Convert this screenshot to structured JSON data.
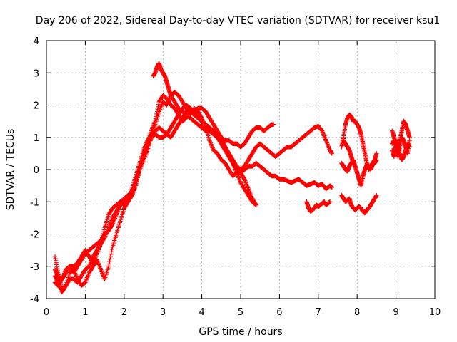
{
  "chart_data": {
    "type": "scatter",
    "title": "Day 206 of 2022, Sidereal Day-to-day VTEC variation (SDTVAR) for receiver ksu1",
    "xlabel": "GPS time / hours",
    "ylabel": "SDTVAR / TECUs",
    "xlim": [
      0,
      10
    ],
    "ylim": [
      -4,
      4
    ],
    "xticks": [
      0,
      1,
      2,
      3,
      4,
      5,
      6,
      7,
      8,
      9,
      10
    ],
    "yticks": [
      -4,
      -3,
      -2,
      -1,
      0,
      1,
      2,
      3,
      4
    ],
    "grid": true,
    "marker": "+",
    "marker_color": "#ff0000",
    "series": [
      {
        "x": [
          0.22,
          0.3,
          0.4,
          0.5,
          0.6,
          0.7,
          0.8,
          0.9,
          1.0,
          1.1,
          1.2,
          1.3,
          1.4,
          1.5,
          1.6,
          1.7,
          1.8,
          1.9,
          2.0,
          2.1,
          2.2,
          2.3,
          2.4,
          2.5,
          2.6,
          2.7,
          2.8,
          2.9,
          3.0,
          3.1,
          3.2,
          3.3,
          3.4,
          3.5,
          3.6,
          3.7,
          3.8,
          3.9,
          4.0,
          4.1,
          4.2,
          4.3,
          4.4,
          4.5,
          4.6,
          4.7,
          4.8,
          4.9,
          5.0,
          5.1,
          5.2,
          5.3,
          5.4
        ],
        "y": [
          -2.7,
          -3.2,
          -3.7,
          -3.6,
          -3.4,
          -3.4,
          -3.5,
          -3.3,
          -3.1,
          -3.0,
          -2.7,
          -2.5,
          -2.3,
          -2.1,
          -1.8,
          -1.5,
          -1.3,
          -1.1,
          -1.0,
          -0.9,
          -0.6,
          -0.2,
          0.2,
          0.6,
          0.9,
          1.1,
          1.2,
          1.3,
          1.2,
          1.1,
          1.0,
          1.2,
          1.4,
          1.6,
          1.8,
          1.9,
          1.8,
          1.6,
          1.5,
          1.3,
          0.9,
          0.6,
          0.5,
          0.3,
          0.2,
          0.0,
          -0.2,
          -0.1,
          -0.1,
          -0.3,
          -0.6,
          -0.9,
          -1.1
        ]
      },
      {
        "x": [
          0.22,
          0.3,
          0.4,
          0.5,
          0.6,
          0.7,
          0.8,
          0.9,
          1.0,
          1.1,
          1.2,
          1.3,
          1.4,
          1.5,
          1.6,
          1.7,
          1.8,
          1.9,
          2.0,
          2.1,
          2.2,
          2.3,
          2.4,
          2.5,
          2.6,
          2.7,
          2.8,
          2.9,
          3.0,
          3.1,
          3.2,
          3.3,
          3.4,
          3.5,
          3.6,
          3.7,
          3.8,
          3.9,
          4.0,
          4.1,
          4.2,
          4.3,
          4.4,
          4.5,
          4.6,
          4.7,
          4.8,
          4.9,
          5.0,
          5.1,
          5.2,
          5.3,
          5.4,
          5.5,
          5.6,
          5.7,
          5.8,
          5.85
        ],
        "y": [
          -3.5,
          -3.6,
          -3.4,
          -3.1,
          -3.0,
          -3.2,
          -3.0,
          -2.8,
          -2.6,
          -2.5,
          -2.4,
          -2.3,
          -2.2,
          -2.0,
          -1.9,
          -1.7,
          -1.4,
          -1.1,
          -0.9,
          -0.8,
          -0.7,
          -0.3,
          0.1,
          0.5,
          0.8,
          1.2,
          1.5,
          2.1,
          2.3,
          2.2,
          2.0,
          1.9,
          1.7,
          1.5,
          1.6,
          1.8,
          1.7,
          1.6,
          1.5,
          1.4,
          1.3,
          1.2,
          1.1,
          1.0,
          0.9,
          0.9,
          0.8,
          0.8,
          0.7,
          0.8,
          1.0,
          1.2,
          1.3,
          1.3,
          1.2,
          1.3,
          1.4,
          1.4
        ]
      },
      {
        "x": [
          0.22,
          0.3,
          0.4,
          0.5,
          0.6,
          0.7,
          0.8,
          0.9,
          1.0,
          1.1,
          1.2,
          1.3,
          1.4,
          1.5,
          1.6,
          1.7,
          1.8,
          1.9,
          2.0,
          2.1,
          2.2,
          2.3,
          2.4,
          2.5,
          2.6,
          2.7,
          2.8,
          2.9,
          3.0,
          3.1,
          3.2,
          3.3,
          3.4,
          3.5,
          3.6,
          3.7,
          3.8,
          3.9,
          4.0,
          4.1,
          4.2,
          4.3,
          4.4,
          4.5,
          4.6,
          4.7,
          4.8,
          4.9,
          5.0,
          5.1,
          5.2,
          5.3,
          5.4,
          5.5,
          5.6,
          5.7,
          5.8,
          5.9,
          6.0,
          6.1,
          6.2,
          6.3,
          6.4,
          6.5,
          6.6,
          6.7,
          6.8,
          6.9,
          7.0,
          7.1,
          7.2,
          7.3,
          7.35
        ],
        "y": [
          -3.3,
          -3.5,
          -3.8,
          -3.6,
          -3.2,
          -3.1,
          -3.4,
          -3.6,
          -3.5,
          -3.2,
          -3.0,
          -2.8,
          -3.1,
          -3.4,
          -3.0,
          -2.4,
          -2.0,
          -1.6,
          -1.2,
          -1.0,
          -0.8,
          -0.5,
          0.0,
          0.3,
          0.6,
          1.0,
          1.4,
          1.8,
          2.1,
          2.0,
          2.3,
          2.4,
          2.3,
          2.1,
          1.9,
          1.7,
          1.9,
          1.8,
          1.6,
          1.3,
          1.2,
          1.1,
          1.0,
          0.9,
          0.7,
          0.5,
          0.3,
          0.1,
          0.0,
          0.1,
          0.3,
          0.5,
          0.7,
          0.8,
          0.7,
          0.6,
          0.5,
          0.4,
          0.5,
          0.6,
          0.7,
          0.7,
          0.8,
          0.9,
          1.0,
          1.1,
          1.2,
          1.3,
          1.35,
          1.2,
          0.9,
          0.6,
          0.5
        ]
      },
      {
        "x": [
          0.22,
          0.3,
          0.4,
          0.5,
          0.6,
          0.7,
          0.8,
          0.9,
          1.0,
          1.1,
          1.2,
          1.3,
          1.4,
          1.5,
          1.6,
          1.7,
          1.8,
          1.9,
          2.0,
          2.1,
          2.2,
          2.3,
          2.4,
          2.5,
          2.6,
          2.7,
          2.8,
          2.9,
          3.0,
          3.1,
          3.2,
          3.3,
          3.4,
          3.5,
          3.6,
          3.7,
          3.8,
          3.9,
          4.0,
          4.1,
          4.2,
          4.3,
          4.4,
          4.5,
          4.6,
          4.7,
          4.8,
          4.9,
          5.0,
          5.1,
          5.2,
          5.3,
          5.4,
          5.5,
          5.6,
          5.7,
          5.8,
          5.9,
          6.0,
          6.1,
          6.2,
          6.3,
          6.4,
          6.5,
          6.6,
          6.7,
          6.8,
          6.9,
          7.0,
          7.1,
          7.2,
          7.3,
          7.35
        ],
        "y": [
          -3.1,
          -3.3,
          -3.4,
          -3.2,
          -3.0,
          -3.0,
          -2.9,
          -2.7,
          -2.5,
          -2.7,
          -2.9,
          -2.6,
          -2.3,
          -1.8,
          -1.4,
          -1.2,
          -1.1,
          -1.0,
          -1.1,
          -1.0,
          -0.8,
          -0.4,
          0.0,
          0.4,
          0.7,
          1.0,
          1.1,
          1.0,
          1.0,
          1.1,
          1.3,
          1.5,
          1.7,
          1.9,
          2.0,
          1.9,
          1.8,
          1.9,
          1.9,
          1.8,
          1.6,
          1.4,
          1.2,
          1.0,
          0.7,
          0.4,
          0.2,
          0.0,
          -0.1,
          0.0,
          0.1,
          0.1,
          0.2,
          0.1,
          0.0,
          -0.1,
          -0.2,
          -0.2,
          -0.3,
          -0.3,
          -0.35,
          -0.4,
          -0.35,
          -0.3,
          -0.4,
          -0.5,
          -0.45,
          -0.4,
          -0.5,
          -0.45,
          -0.6,
          -0.5,
          -0.55
        ]
      },
      {
        "x": [
          2.75,
          2.8,
          2.85,
          2.9,
          2.95,
          3.0,
          3.05,
          3.1,
          3.15,
          3.2,
          3.3,
          3.4,
          3.5,
          3.6,
          3.7,
          3.8,
          3.9,
          4.0,
          4.1,
          4.2,
          4.3,
          4.4,
          4.5,
          4.6,
          4.7,
          4.8,
          4.9,
          5.0,
          5.1,
          5.2,
          5.3,
          5.4
        ],
        "y": [
          2.9,
          3.0,
          3.2,
          3.3,
          3.1,
          3.0,
          2.9,
          2.7,
          2.5,
          2.3,
          2.1,
          1.9,
          1.8,
          1.7,
          1.6,
          1.5,
          1.4,
          1.3,
          1.2,
          1.2,
          1.1,
          1.0,
          0.8,
          0.6,
          0.4,
          0.2,
          -0.1,
          -0.4,
          -0.6,
          -0.8,
          -1.0,
          -1.1
        ]
      },
      {
        "x": [
          6.7,
          6.75,
          6.8,
          6.85,
          6.9,
          6.95,
          7.0,
          7.05,
          7.1,
          7.15,
          7.2,
          7.25,
          7.3
        ],
        "y": [
          -1.0,
          -1.2,
          -1.3,
          -1.25,
          -1.2,
          -1.1,
          -1.15,
          -1.1,
          -1.05,
          -1.0,
          -1.1,
          -1.05,
          -1.0
        ]
      },
      {
        "x": [
          7.6,
          7.65,
          7.7,
          7.75,
          7.8,
          7.85,
          7.9,
          7.95,
          8.0,
          8.05,
          8.1,
          8.15,
          8.2,
          8.25,
          8.3,
          8.35,
          8.4,
          8.45,
          8.5
        ],
        "y": [
          0.7,
          1.0,
          1.4,
          1.6,
          1.7,
          1.65,
          1.5,
          1.5,
          1.4,
          1.3,
          1.1,
          0.8,
          0.5,
          0.2,
          0.0,
          0.1,
          0.2,
          0.3,
          0.5
        ]
      },
      {
        "x": [
          7.6,
          7.65,
          7.7,
          7.75,
          7.8,
          7.85,
          7.9,
          7.95,
          8.0,
          8.05,
          8.1,
          8.15,
          8.2,
          8.25,
          8.3,
          8.35,
          8.4,
          8.45,
          8.5
        ],
        "y": [
          0.2,
          0.1,
          0.0,
          -0.05,
          0.1,
          0.2,
          0.3,
          0.1,
          -0.1,
          -0.3,
          -0.5,
          -0.2,
          0.0,
          0.15,
          0.1,
          0.0,
          0.15,
          0.2,
          0.3
        ]
      },
      {
        "x": [
          7.6,
          7.65,
          7.7,
          7.75,
          7.8,
          7.85,
          7.9,
          7.95,
          8.0,
          8.05,
          8.1,
          8.15,
          8.2,
          8.25,
          8.3,
          8.35,
          8.4,
          8.45,
          8.5
        ],
        "y": [
          -0.8,
          -0.9,
          -1.0,
          -0.95,
          -0.9,
          -1.1,
          -1.2,
          -1.25,
          -1.2,
          -1.15,
          -1.2,
          -1.3,
          -1.35,
          -1.25,
          -1.2,
          -1.1,
          -1.0,
          -0.9,
          -0.8
        ]
      },
      {
        "x": [
          7.65,
          7.7,
          7.75,
          7.8,
          7.85,
          7.9
        ],
        "y": [
          0.9,
          0.8,
          0.7,
          0.6,
          0.4,
          0.2
        ]
      },
      {
        "x": [
          8.9,
          8.95,
          9.0,
          9.05,
          9.1,
          9.15,
          9.2,
          9.25,
          9.3,
          9.35
        ],
        "y": [
          1.2,
          1.0,
          0.8,
          0.6,
          0.9,
          1.2,
          1.5,
          1.4,
          1.2,
          1.0
        ]
      },
      {
        "x": [
          8.9,
          8.95,
          9.0,
          9.05,
          9.1,
          9.15,
          9.2,
          9.25,
          9.3,
          9.35
        ],
        "y": [
          0.6,
          0.4,
          0.7,
          0.9,
          0.5,
          0.3,
          0.4,
          0.6,
          0.8,
          0.7
        ]
      },
      {
        "x": [
          8.9,
          8.95,
          9.0,
          9.05,
          9.1,
          9.15,
          9.2,
          9.25,
          9.3,
          9.35
        ],
        "y": [
          0.8,
          0.9,
          0.6,
          0.4,
          0.7,
          1.0,
          0.9,
          0.7,
          0.5,
          0.9
        ]
      }
    ]
  }
}
